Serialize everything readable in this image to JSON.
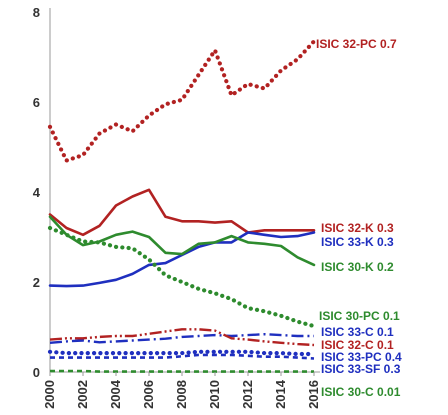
{
  "chart_data": {
    "type": "line",
    "x": [
      2000,
      2001,
      2002,
      2003,
      2004,
      2005,
      2006,
      2007,
      2008,
      2009,
      2010,
      2011,
      2012,
      2013,
      2014,
      2015,
      2016
    ],
    "xticks": [
      "2000",
      "2002",
      "2004",
      "2006",
      "2008",
      "2010",
      "2012",
      "2014",
      "2016"
    ],
    "yticks": [
      "0",
      "2",
      "4",
      "6",
      "8"
    ],
    "xlim": [
      2000,
      2016
    ],
    "ylim": [
      0,
      8
    ],
    "grid": false,
    "series": [
      {
        "name": "ISIC 32-PC 0.7",
        "color": "#b22222",
        "style": "dotted",
        "values": [
          5.45,
          4.7,
          4.82,
          5.3,
          5.5,
          5.35,
          5.7,
          5.95,
          6.05,
          6.6,
          7.15,
          6.15,
          6.4,
          6.3,
          6.7,
          6.95,
          7.35
        ]
      },
      {
        "name": "ISIC 32-K 0.3",
        "color": "#b22222",
        "style": "solid",
        "values": [
          3.5,
          3.2,
          3.05,
          3.25,
          3.7,
          3.9,
          4.05,
          3.45,
          3.35,
          3.35,
          3.32,
          3.35,
          3.1,
          3.15,
          3.15,
          3.15,
          3.15
        ]
      },
      {
        "name": "ISIC 33-K 0.3",
        "color": "#1f2fbf",
        "style": "solid",
        "values": [
          1.92,
          1.91,
          1.92,
          1.98,
          2.05,
          2.18,
          2.38,
          2.42,
          2.6,
          2.78,
          2.88,
          2.88,
          3.1,
          3.05,
          3.0,
          3.02,
          3.1
        ]
      },
      {
        "name": "ISIC 30-K 0.2",
        "color": "#2e8b2e",
        "style": "solid",
        "values": [
          3.45,
          3.05,
          2.82,
          2.9,
          3.05,
          3.12,
          3.0,
          2.65,
          2.62,
          2.85,
          2.88,
          3.02,
          2.88,
          2.85,
          2.8,
          2.55,
          2.38
        ]
      },
      {
        "name": "ISIC 30-PC 0.1",
        "color": "#2e8b2e",
        "style": "dotted",
        "values": [
          3.2,
          3.05,
          2.9,
          2.88,
          2.78,
          2.75,
          2.5,
          2.15,
          2.0,
          1.85,
          1.75,
          1.62,
          1.42,
          1.35,
          1.25,
          1.12,
          1.02
        ]
      },
      {
        "name": "ISIC 33-C 0.1",
        "color": "#1f2fbf",
        "style": "dashdot",
        "values": [
          0.65,
          0.68,
          0.7,
          0.66,
          0.68,
          0.7,
          0.72,
          0.74,
          0.78,
          0.8,
          0.82,
          0.8,
          0.82,
          0.84,
          0.82,
          0.8,
          0.8
        ]
      },
      {
        "name": "ISIC 32-C 0.1",
        "color": "#b22222",
        "style": "dashdotdot",
        "values": [
          0.72,
          0.75,
          0.75,
          0.78,
          0.8,
          0.8,
          0.85,
          0.9,
          0.95,
          0.95,
          0.92,
          0.75,
          0.72,
          0.68,
          0.65,
          0.62,
          0.6
        ]
      },
      {
        "name": "ISIC 33-PC 0.4",
        "color": "#1f2fbf",
        "style": "dotted",
        "values": [
          0.45,
          0.42,
          0.42,
          0.42,
          0.42,
          0.42,
          0.42,
          0.42,
          0.42,
          0.45,
          0.45,
          0.45,
          0.45,
          0.42,
          0.42,
          0.4,
          0.4
        ]
      },
      {
        "name": "ISIC 33-SF 0.3",
        "color": "#1f2fbf",
        "style": "dashed",
        "values": [
          0.32,
          0.32,
          0.32,
          0.32,
          0.32,
          0.32,
          0.32,
          0.32,
          0.35,
          0.38,
          0.38,
          0.38,
          0.36,
          0.34,
          0.34,
          0.32,
          0.3
        ]
      },
      {
        "name": "ISIC 30-C 0.01",
        "color": "#2e8b2e",
        "style": "dashed",
        "values": [
          0.02,
          0.02,
          0.02,
          0.01,
          0.01,
          0.01,
          0.01,
          0.01,
          0.01,
          0.01,
          0.01,
          0.01,
          0.01,
          0.01,
          0.01,
          0.01,
          0.01
        ]
      }
    ]
  }
}
